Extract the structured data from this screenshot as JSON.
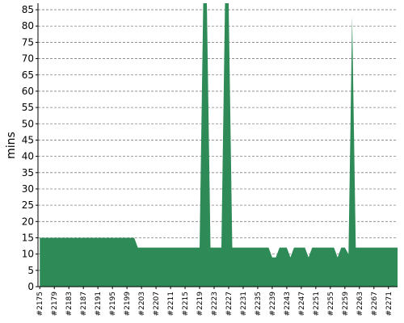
{
  "chart_data": {
    "type": "area",
    "ylabel": "mins",
    "xlabel": "",
    "ylim": [
      0,
      87
    ],
    "yticks": [
      0,
      5,
      10,
      15,
      20,
      25,
      30,
      35,
      40,
      45,
      50,
      55,
      60,
      65,
      70,
      75,
      80,
      85
    ],
    "grid": true,
    "xticks": [
      "#2175",
      "#2179",
      "#2183",
      "#2187",
      "#2191",
      "#2195",
      "#2199",
      "#2203",
      "#2207",
      "#2211",
      "#2215",
      "#2219",
      "#2223",
      "#2227",
      "#2231",
      "#2235",
      "#2239",
      "#2243",
      "#2247",
      "#2251",
      "#2255",
      "#2259",
      "#2263",
      "#2267",
      "#2271"
    ],
    "series": [
      {
        "color": "#2e8b57",
        "x": [
          2175,
          2176,
          2177,
          2178,
          2179,
          2180,
          2181,
          2182,
          2183,
          2184,
          2185,
          2186,
          2187,
          2188,
          2189,
          2190,
          2191,
          2192,
          2193,
          2194,
          2195,
          2196,
          2197,
          2198,
          2199,
          2200,
          2201,
          2202,
          2203,
          2204,
          2205,
          2206,
          2207,
          2208,
          2209,
          2210,
          2211,
          2212,
          2213,
          2214,
          2215,
          2216,
          2217,
          2218,
          2219,
          2220,
          2221,
          2222,
          2223,
          2224,
          2225,
          2226,
          2227,
          2228,
          2229,
          2230,
          2231,
          2232,
          2233,
          2234,
          2235,
          2236,
          2237,
          2238,
          2239,
          2240,
          2241,
          2242,
          2243,
          2244,
          2245,
          2246,
          2247,
          2248,
          2249,
          2250,
          2251,
          2252,
          2253,
          2254,
          2255,
          2256,
          2257,
          2258,
          2259,
          2260,
          2261,
          2262,
          2263,
          2264,
          2265,
          2266,
          2267,
          2268,
          2269,
          2270,
          2271,
          2272,
          2273,
          2274
        ],
        "values": [
          15,
          15,
          15,
          15,
          15,
          15,
          15,
          15,
          15,
          15,
          15,
          15,
          15,
          15,
          15,
          15,
          15,
          15,
          15,
          15,
          15,
          15,
          15,
          15,
          15,
          15,
          15,
          12,
          12,
          12,
          12,
          12,
          12,
          12,
          12,
          12,
          12,
          12,
          12,
          12,
          12,
          12,
          12,
          12,
          12,
          88,
          88,
          12,
          12,
          12,
          12,
          88,
          88,
          12,
          12,
          12,
          12,
          12,
          12,
          12,
          12,
          12,
          12,
          12,
          9,
          9,
          12,
          12,
          12,
          9,
          12,
          12,
          12,
          12,
          9,
          12,
          12,
          12,
          12,
          12,
          12,
          12,
          9,
          12,
          12,
          10,
          83,
          12,
          12,
          12,
          12,
          12,
          12,
          12,
          12,
          12,
          12,
          12,
          12,
          12
        ]
      }
    ]
  }
}
